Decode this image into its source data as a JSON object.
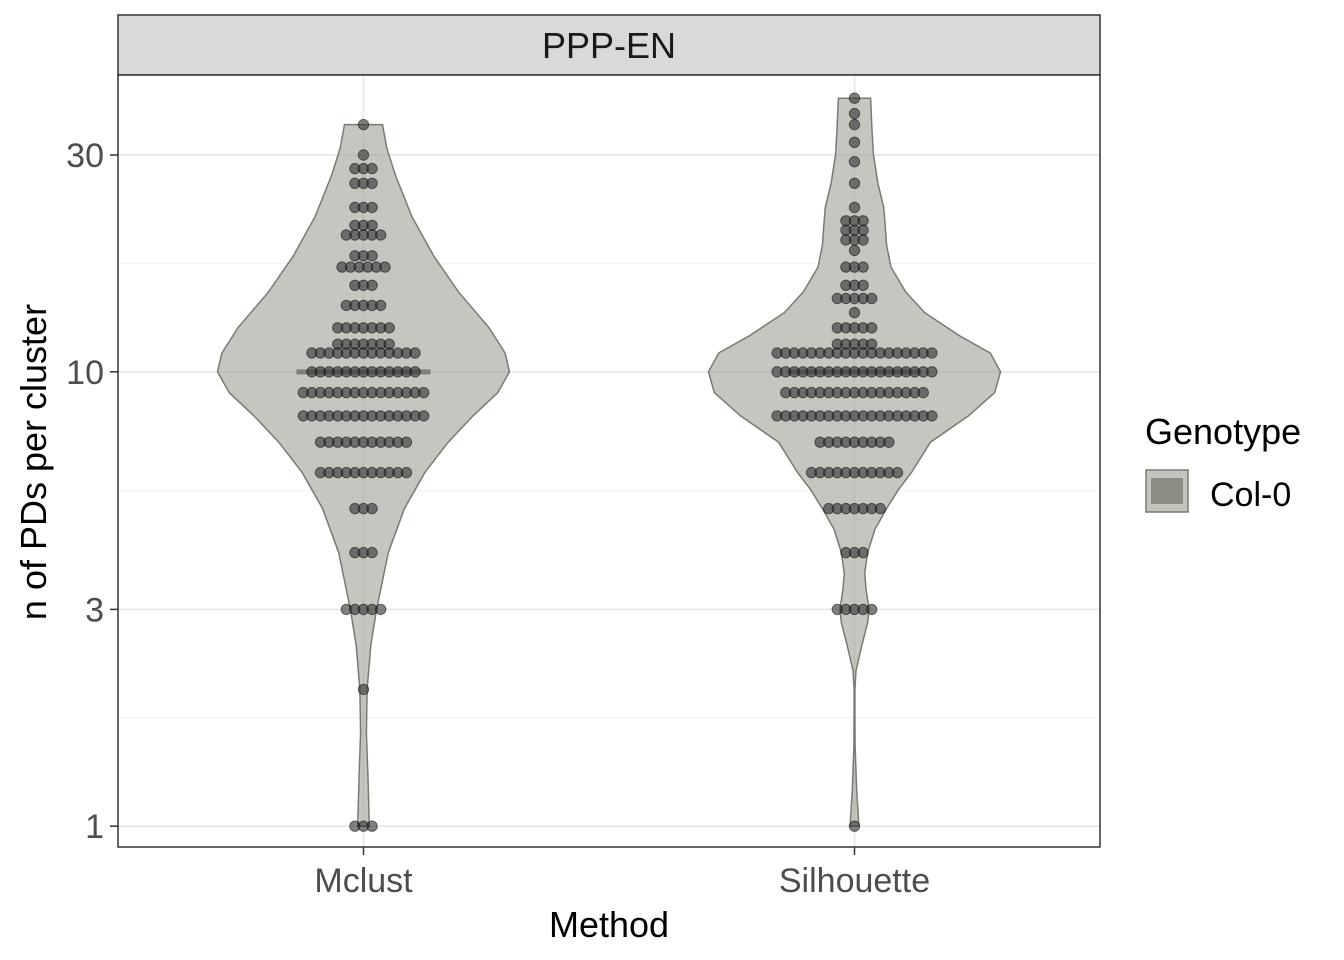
{
  "chart_data": {
    "type": "violin",
    "facet": "PPP-EN",
    "xlabel": "Method",
    "ylabel": "n of PDs per cluster",
    "y_scale": "log10",
    "ylim": [
      0.9,
      45
    ],
    "y_ticks": [
      1,
      3,
      10,
      30
    ],
    "y_tick_labels": [
      "1",
      "3",
      "10",
      "30"
    ],
    "categories": [
      "Mclust",
      "Silhouette"
    ],
    "grid": true,
    "legend": {
      "title": "Genotype",
      "placement": "right",
      "entries": [
        {
          "label": "Col-0",
          "color": "#8c8c84"
        }
      ]
    },
    "colors": {
      "violin_fill": "#a3a39b",
      "violin_stroke": "#7a7a72",
      "point": "#333333",
      "median_bar": "#7f7f77"
    },
    "violins": [
      {
        "name": "Mclust",
        "median": 10,
        "density_profile": [
          [
            1.0,
            0.04
          ],
          [
            1.3,
            0.03
          ],
          [
            1.6,
            0.02
          ],
          [
            2.0,
            0.025
          ],
          [
            2.5,
            0.05
          ],
          [
            3.0,
            0.09
          ],
          [
            4.0,
            0.17
          ],
          [
            5.0,
            0.28
          ],
          [
            6.0,
            0.42
          ],
          [
            7.0,
            0.58
          ],
          [
            8.0,
            0.75
          ],
          [
            9.0,
            0.92
          ],
          [
            10.0,
            1.0
          ],
          [
            11.0,
            0.97
          ],
          [
            12.5,
            0.86
          ],
          [
            15.0,
            0.65
          ],
          [
            18.0,
            0.48
          ],
          [
            22.0,
            0.33
          ],
          [
            27.0,
            0.22
          ],
          [
            31.0,
            0.16
          ],
          [
            35.0,
            0.13
          ]
        ],
        "points": [
          {
            "value": 35,
            "n": 1
          },
          {
            "value": 30,
            "n": 1
          },
          {
            "value": 28,
            "n": 3
          },
          {
            "value": 26,
            "n": 3
          },
          {
            "value": 23,
            "n": 3
          },
          {
            "value": 21,
            "n": 3
          },
          {
            "value": 20,
            "n": 5
          },
          {
            "value": 18,
            "n": 3
          },
          {
            "value": 17,
            "n": 6
          },
          {
            "value": 15.5,
            "n": 3
          },
          {
            "value": 14,
            "n": 5
          },
          {
            "value": 12.5,
            "n": 7
          },
          {
            "value": 11.5,
            "n": 7
          },
          {
            "value": 11,
            "n": 13
          },
          {
            "value": 10,
            "n": 13
          },
          {
            "value": 9,
            "n": 15
          },
          {
            "value": 8,
            "n": 15
          },
          {
            "value": 7,
            "n": 11
          },
          {
            "value": 6,
            "n": 11
          },
          {
            "value": 5,
            "n": 3
          },
          {
            "value": 4,
            "n": 3
          },
          {
            "value": 3,
            "n": 5
          },
          {
            "value": 2,
            "n": 1
          },
          {
            "value": 1,
            "n": 3
          }
        ]
      },
      {
        "name": "Silhouette",
        "median": 10,
        "density_profile": [
          [
            1.0,
            0.03
          ],
          [
            1.2,
            0.015
          ],
          [
            1.5,
            0.004
          ],
          [
            1.8,
            0.003
          ],
          [
            2.0,
            0.003
          ],
          [
            2.2,
            0.01
          ],
          [
            2.5,
            0.05
          ],
          [
            2.8,
            0.09
          ],
          [
            3.0,
            0.1
          ],
          [
            3.3,
            0.08
          ],
          [
            3.6,
            0.07
          ],
          [
            4.0,
            0.09
          ],
          [
            4.5,
            0.14
          ],
          [
            5.0,
            0.22
          ],
          [
            5.5,
            0.3
          ],
          [
            6.0,
            0.39
          ],
          [
            7.0,
            0.52
          ],
          [
            8.0,
            0.78
          ],
          [
            9.0,
            0.96
          ],
          [
            10.0,
            1.0
          ],
          [
            11.0,
            0.93
          ],
          [
            12.0,
            0.72
          ],
          [
            13.5,
            0.48
          ],
          [
            15.0,
            0.35
          ],
          [
            17.0,
            0.25
          ],
          [
            19.0,
            0.22
          ],
          [
            21.0,
            0.21
          ],
          [
            23.0,
            0.2
          ],
          [
            26.0,
            0.16
          ],
          [
            30.0,
            0.13
          ],
          [
            34.0,
            0.12
          ],
          [
            40.0,
            0.11
          ]
        ],
        "points": [
          {
            "value": 40,
            "n": 1
          },
          {
            "value": 37,
            "n": 1
          },
          {
            "value": 35,
            "n": 1
          },
          {
            "value": 32,
            "n": 1
          },
          {
            "value": 29,
            "n": 1
          },
          {
            "value": 26,
            "n": 1
          },
          {
            "value": 23,
            "n": 1
          },
          {
            "value": 21.5,
            "n": 3
          },
          {
            "value": 20.5,
            "n": 3
          },
          {
            "value": 19.5,
            "n": 3
          },
          {
            "value": 18.5,
            "n": 1
          },
          {
            "value": 17,
            "n": 3
          },
          {
            "value": 15.5,
            "n": 3
          },
          {
            "value": 14.5,
            "n": 5
          },
          {
            "value": 13.5,
            "n": 1
          },
          {
            "value": 12.5,
            "n": 5
          },
          {
            "value": 11.5,
            "n": 5
          },
          {
            "value": 11,
            "n": 19
          },
          {
            "value": 10,
            "n": 19
          },
          {
            "value": 9,
            "n": 17
          },
          {
            "value": 8,
            "n": 19
          },
          {
            "value": 7,
            "n": 9
          },
          {
            "value": 6,
            "n": 11
          },
          {
            "value": 5,
            "n": 7
          },
          {
            "value": 4,
            "n": 3
          },
          {
            "value": 3,
            "n": 5
          },
          {
            "value": 1,
            "n": 1
          }
        ]
      }
    ]
  }
}
